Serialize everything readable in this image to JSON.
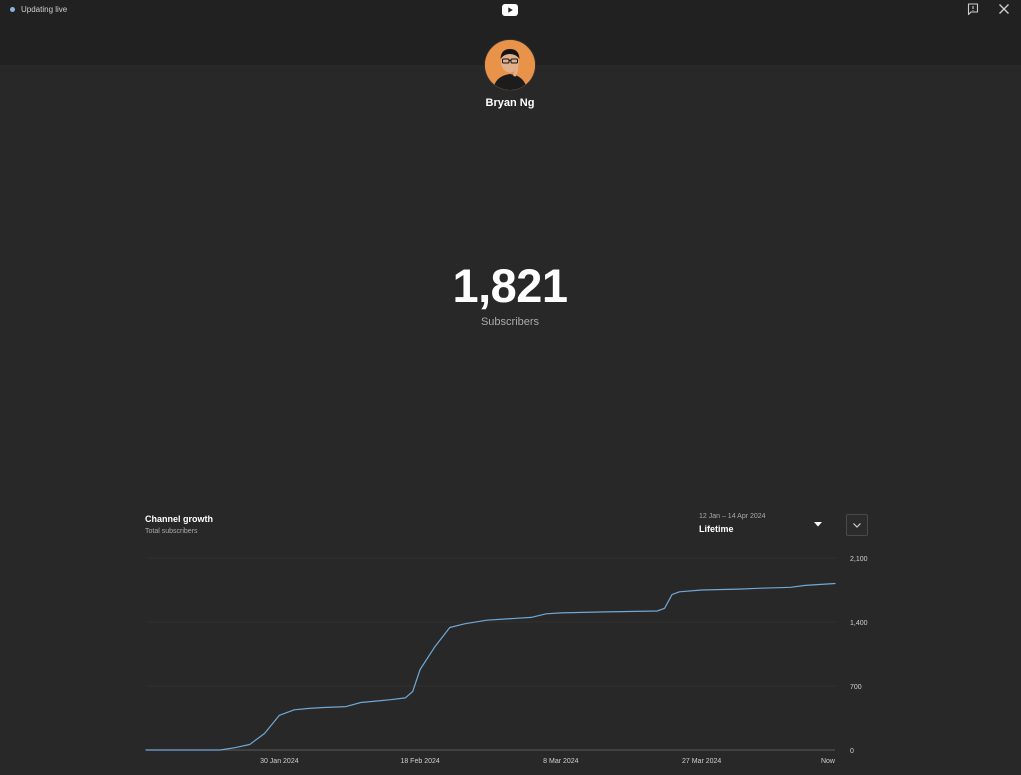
{
  "header": {
    "live_status": "Updating live",
    "logo_icon": "youtube-logo-icon",
    "feedback_icon": "feedback-icon",
    "close_icon": "close-icon"
  },
  "channel": {
    "name": "Bryan Ng",
    "avatar_icon": "avatar"
  },
  "counter": {
    "value": "1,821",
    "label": "Subscribers"
  },
  "chart_panel": {
    "title": "Channel growth",
    "subtitle": "Total subscribers",
    "range_dates": "12 Jan – 14 Apr 2024",
    "range_label": "Lifetime",
    "expand_icon": "chevron-down-icon",
    "dropdown_icon": "caret-down-icon"
  },
  "colors": {
    "background": "#282828",
    "header_band": "#212121",
    "line": "#6fa8d6",
    "grid": "#3a3a3a",
    "live_dot": "#8ab4d8"
  },
  "chart_data": {
    "type": "line",
    "title": "Channel growth",
    "subtitle": "Total subscribers",
    "xlabel": "",
    "ylabel": "",
    "x_start": "12 Jan 2024",
    "x_end": "14 Apr 2024",
    "ylim": [
      0,
      2100
    ],
    "y_ticks": [
      {
        "value": 0,
        "label": "0"
      },
      {
        "value": 700,
        "label": "700"
      },
      {
        "value": 1400,
        "label": "1,400"
      },
      {
        "value": 2100,
        "label": "2,100"
      }
    ],
    "x_ticks": [
      {
        "date": "2024-01-30",
        "label": "30 Jan 2024"
      },
      {
        "date": "2024-02-18",
        "label": "18 Feb 2024"
      },
      {
        "date": "2024-03-08",
        "label": "8 Mar 2024"
      },
      {
        "date": "2024-03-27",
        "label": "27 Mar 2024"
      },
      {
        "date": "2024-04-14",
        "label": "Now"
      }
    ],
    "grid": true,
    "series": [
      {
        "values": [
          {
            "x": "2024-01-12",
            "y": 0
          },
          {
            "x": "2024-01-22",
            "y": 0
          },
          {
            "x": "2024-01-24",
            "y": 25
          },
          {
            "x": "2024-01-26",
            "y": 60
          },
          {
            "x": "2024-01-28",
            "y": 180
          },
          {
            "x": "2024-01-30",
            "y": 380
          },
          {
            "x": "2024-02-01",
            "y": 440
          },
          {
            "x": "2024-02-03",
            "y": 455
          },
          {
            "x": "2024-02-05",
            "y": 465
          },
          {
            "x": "2024-02-08",
            "y": 475
          },
          {
            "x": "2024-02-10",
            "y": 520
          },
          {
            "x": "2024-02-12",
            "y": 535
          },
          {
            "x": "2024-02-14",
            "y": 550
          },
          {
            "x": "2024-02-16",
            "y": 570
          },
          {
            "x": "2024-02-17",
            "y": 640
          },
          {
            "x": "2024-02-18",
            "y": 880
          },
          {
            "x": "2024-02-20",
            "y": 1130
          },
          {
            "x": "2024-02-22",
            "y": 1340
          },
          {
            "x": "2024-02-24",
            "y": 1380
          },
          {
            "x": "2024-02-27",
            "y": 1420
          },
          {
            "x": "2024-03-02",
            "y": 1440
          },
          {
            "x": "2024-03-04",
            "y": 1450
          },
          {
            "x": "2024-03-06",
            "y": 1490
          },
          {
            "x": "2024-03-08",
            "y": 1500
          },
          {
            "x": "2024-03-14",
            "y": 1510
          },
          {
            "x": "2024-03-21",
            "y": 1520
          },
          {
            "x": "2024-03-22",
            "y": 1550
          },
          {
            "x": "2024-03-23",
            "y": 1700
          },
          {
            "x": "2024-03-24",
            "y": 1730
          },
          {
            "x": "2024-03-27",
            "y": 1750
          },
          {
            "x": "2024-04-01",
            "y": 1760
          },
          {
            "x": "2024-04-04",
            "y": 1770
          },
          {
            "x": "2024-04-08",
            "y": 1780
          },
          {
            "x": "2024-04-10",
            "y": 1800
          },
          {
            "x": "2024-04-14",
            "y": 1821
          }
        ]
      }
    ]
  }
}
